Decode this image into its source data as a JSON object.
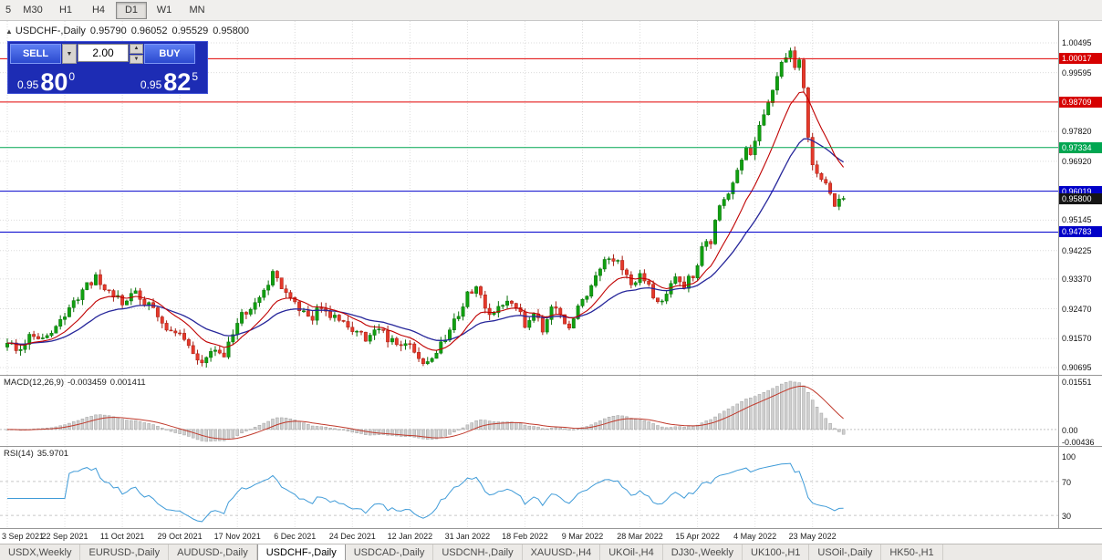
{
  "toolbar": {
    "timeframes": [
      "5",
      "M30",
      "H1",
      "H4",
      "D1",
      "W1",
      "MN"
    ],
    "active_timeframe": "D1"
  },
  "chart_header": {
    "symbol": "USDCHF-,Daily",
    "open": "0.95790",
    "high": "0.96052",
    "low": "0.95529",
    "close": "0.95800"
  },
  "icons": {
    "chart_icon": "▲",
    "dropdown_icon": "▼",
    "spinner_up": "▲",
    "spinner_down": "▼"
  },
  "trade_panel": {
    "sell_label": "SELL",
    "buy_label": "BUY",
    "volume": "2.00",
    "sell_price": {
      "prefix": "0.95",
      "big": "80",
      "sup": "0"
    },
    "buy_price": {
      "prefix": "0.95",
      "big": "82",
      "sup": "5"
    }
  },
  "price_axis": {
    "ticks": [
      {
        "label": "1.00495",
        "price": 1.00495
      },
      {
        "label": "0.99595",
        "price": 0.99595
      },
      {
        "label": "0.97820",
        "price": 0.9782
      },
      {
        "label": "0.96920",
        "price": 0.9692
      },
      {
        "label": "0.95145",
        "price": 0.95145
      },
      {
        "label": "0.94225",
        "price": 0.94225
      },
      {
        "label": "0.93370",
        "price": 0.9337
      },
      {
        "label": "0.92470",
        "price": 0.9247
      },
      {
        "label": "0.91570",
        "price": 0.9157
      },
      {
        "label": "0.90695",
        "price": 0.90695
      }
    ],
    "badges": [
      {
        "label": "1.00017",
        "price": 1.00017,
        "color": "#d60000"
      },
      {
        "label": "0.98709",
        "price": 0.98709,
        "color": "#d60000"
      },
      {
        "label": "0.97334",
        "price": 0.97334,
        "color": "#00a651"
      },
      {
        "label": "0.96019",
        "price": 0.96019,
        "color": "#0000c8"
      },
      {
        "label": "0.94783",
        "price": 0.94783,
        "color": "#0000c8"
      },
      {
        "label": "0.95800",
        "price": 0.958,
        "color": "#151515"
      }
    ]
  },
  "macd": {
    "label": "MACD(12,26,9)",
    "main_value": "-0.003459",
    "signal_value": "0.001411",
    "axis_max": "0.01551",
    "axis_zero": "0.00",
    "axis_min": "-0.00436"
  },
  "rsi": {
    "label": "RSI(14)",
    "value": "35.9701",
    "axis_top": "100",
    "axis_upper": "70",
    "axis_lower": "30"
  },
  "time_axis": [
    "3 Sep 2021",
    "22 Sep 2021",
    "11 Oct 2021",
    "29 Oct 2021",
    "17 Nov 2021",
    "6 Dec 2021",
    "24 Dec 2021",
    "12 Jan 2022",
    "31 Jan 2022",
    "18 Feb 2022",
    "9 Mar 2022",
    "28 Mar 2022",
    "15 Apr 2022",
    "4 May 2022",
    "23 May 2022"
  ],
  "tabs": [
    "USDX,Weekly",
    "EURUSD-,Daily",
    "AUDUSD-,Daily",
    "USDCHF-,Daily",
    "USDCAD-,Daily",
    "USDCNH-,Daily",
    "XAUUSD-,H4",
    "UKOil-,H4",
    "DJ30-,Weekly",
    "UK100-,H1",
    "USOil-,Daily",
    "HK50-,H1"
  ],
  "active_tab": "USDCHF-,Daily",
  "chart_data": {
    "type": "candlestick",
    "title": "USDCHF-,Daily",
    "ohlc_display": {
      "open": 0.9579,
      "high": 0.96052,
      "low": 0.95529,
      "close": 0.958
    },
    "last_close": 0.958,
    "n_candles": 190,
    "ylim": [
      0.9045,
      1.0105
    ],
    "x_tick_step_days": 13,
    "keyframes_day_close": [
      [
        0,
        0.915
      ],
      [
        2,
        0.9122
      ],
      [
        5,
        0.9168
      ],
      [
        9,
        0.916
      ],
      [
        13,
        0.9218
      ],
      [
        17,
        0.93
      ],
      [
        20,
        0.9337
      ],
      [
        23,
        0.9288
      ],
      [
        26,
        0.9272
      ],
      [
        29,
        0.9296
      ],
      [
        32,
        0.9252
      ],
      [
        35,
        0.9207
      ],
      [
        39,
        0.916
      ],
      [
        42,
        0.9108
      ],
      [
        45,
        0.9086
      ],
      [
        47,
        0.9128
      ],
      [
        49,
        0.9105
      ],
      [
        52,
        0.9212
      ],
      [
        55,
        0.9258
      ],
      [
        58,
        0.9292
      ],
      [
        60,
        0.9368
      ],
      [
        62,
        0.9312
      ],
      [
        65,
        0.9256
      ],
      [
        68,
        0.9216
      ],
      [
        71,
        0.9246
      ],
      [
        74,
        0.9222
      ],
      [
        78,
        0.9186
      ],
      [
        81,
        0.9162
      ],
      [
        84,
        0.9188
      ],
      [
        87,
        0.9146
      ],
      [
        89,
        0.9126
      ],
      [
        91,
        0.9136
      ],
      [
        93,
        0.9096
      ],
      [
        95,
        0.9086
      ],
      [
        97,
        0.9126
      ],
      [
        100,
        0.9182
      ],
      [
        102,
        0.9226
      ],
      [
        104,
        0.9292
      ],
      [
        106,
        0.9312
      ],
      [
        108,
        0.9246
      ],
      [
        110,
        0.9226
      ],
      [
        112,
        0.9256
      ],
      [
        114,
        0.9272
      ],
      [
        117,
        0.9202
      ],
      [
        119,
        0.9226
      ],
      [
        121,
        0.9186
      ],
      [
        123,
        0.9266
      ],
      [
        125,
        0.9216
      ],
      [
        127,
        0.9186
      ],
      [
        129,
        0.9256
      ],
      [
        131,
        0.9296
      ],
      [
        133,
        0.9342
      ],
      [
        136,
        0.9406
      ],
      [
        139,
        0.9366
      ],
      [
        141,
        0.9332
      ],
      [
        143,
        0.9346
      ],
      [
        145,
        0.9312
      ],
      [
        147,
        0.9256
      ],
      [
        149,
        0.9286
      ],
      [
        151,
        0.9336
      ],
      [
        153,
        0.9312
      ],
      [
        155,
        0.9352
      ],
      [
        157,
        0.9428
      ],
      [
        159,
        0.9456
      ],
      [
        161,
        0.9548
      ],
      [
        163,
        0.9596
      ],
      [
        165,
        0.9658
      ],
      [
        167,
        0.9732
      ],
      [
        168,
        0.9702
      ],
      [
        169,
        0.9758
      ],
      [
        171,
        0.9842
      ],
      [
        173,
        0.9905
      ],
      [
        175,
        0.9992
      ],
      [
        177,
        1.0038
      ],
      [
        178,
        0.9988
      ],
      [
        179,
        1.0012
      ],
      [
        180,
        0.9924
      ],
      [
        181,
        0.9772
      ],
      [
        182,
        0.9694
      ],
      [
        184,
        0.9632
      ],
      [
        186,
        0.9598
      ],
      [
        187,
        0.9553
      ],
      [
        188,
        0.9579
      ],
      [
        189,
        0.958
      ]
    ],
    "h_lines": [
      {
        "price": 1.00017,
        "color": "#e00000"
      },
      {
        "price": 0.98709,
        "color": "#e00000"
      },
      {
        "price": 0.97334,
        "color": "#00a651"
      },
      {
        "price": 0.96019,
        "color": "#0000cc"
      },
      {
        "price": 0.94783,
        "color": "#0000cc"
      }
    ],
    "moving_averages": [
      {
        "period": 12,
        "color": "#c00000"
      },
      {
        "period": 26,
        "color": "#26269a"
      }
    ],
    "macd": {
      "fast": 12,
      "slow": 26,
      "signal": 9,
      "current_main": -0.003459,
      "current_signal": 0.001411,
      "axis": [
        0.01551,
        0.0,
        -0.00436
      ]
    },
    "rsi": {
      "period": 14,
      "current": 35.9701,
      "levels": [
        30,
        70
      ]
    }
  }
}
